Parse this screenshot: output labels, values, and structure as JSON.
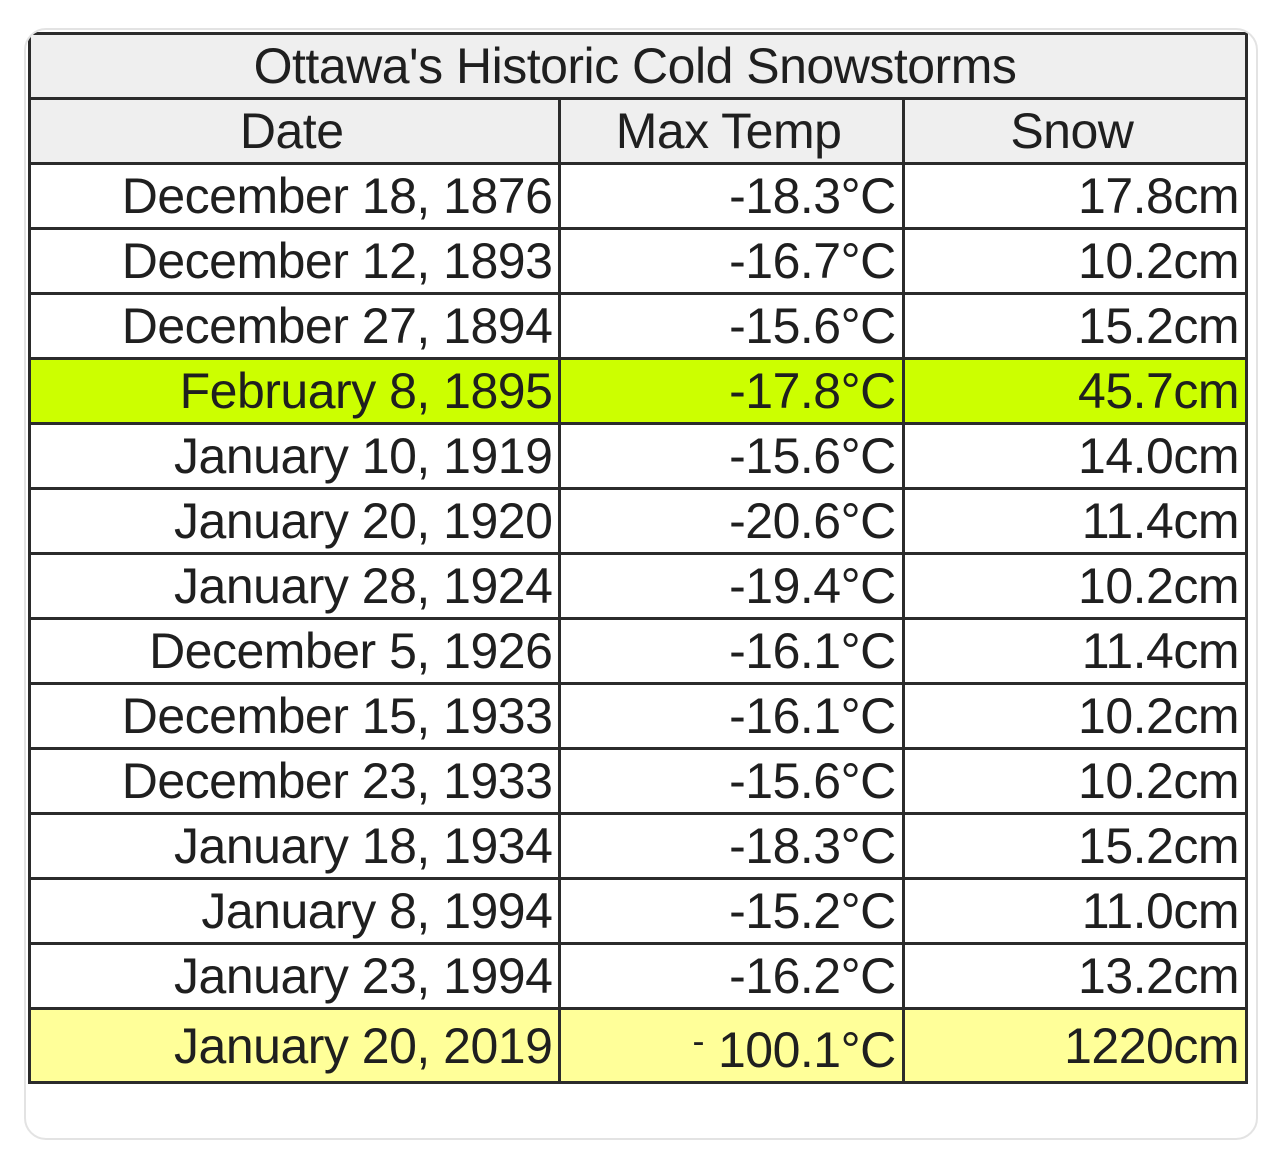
{
  "table": {
    "title": "Ottawa's Historic Cold Snowstorms",
    "headers": [
      "Date",
      "Max Temp",
      "Snow"
    ],
    "rows": [
      {
        "date": "December 18, 1876",
        "temp": "-18.3°C",
        "snow": "17.8cm"
      },
      {
        "date": "December 12, 1893",
        "temp": "-16.7°C",
        "snow": "10.2cm"
      },
      {
        "date": "December 27, 1894",
        "temp": "-15.6°C",
        "snow": "15.2cm"
      },
      {
        "date": "February 8, 1895",
        "temp": "-17.8°C",
        "snow": "45.7cm"
      },
      {
        "date": "January 10, 1919",
        "temp": "-15.6°C",
        "snow": "14.0cm"
      },
      {
        "date": "January 20, 1920",
        "temp": "-20.6°C",
        "snow": "11.4cm"
      },
      {
        "date": "January 28, 1924",
        "temp": "-19.4°C",
        "snow": "10.2cm"
      },
      {
        "date": "December 5, 1926",
        "temp": "-16.1°C",
        "snow": "11.4cm"
      },
      {
        "date": "December 15, 1933",
        "temp": "-16.1°C",
        "snow": "10.2cm"
      },
      {
        "date": "December 23, 1933",
        "temp": "-15.6°C",
        "snow": "10.2cm"
      },
      {
        "date": "January 18, 1934",
        "temp": "-18.3°C",
        "snow": "15.2cm"
      },
      {
        "date": "January 8, 1994",
        "temp": "-15.2°C",
        "snow": "11.0cm"
      },
      {
        "date": "January 23, 1994",
        "temp": "-16.2°C",
        "snow": "13.2cm"
      },
      {
        "date": "January 20, 2019",
        "temp_dash": "-",
        "temp": "100.1°C",
        "snow": "1220cm"
      }
    ]
  },
  "colors": {
    "highlight_green": "#ccff00",
    "highlight_yellow": "#ffff99",
    "header_bg": "#efefef",
    "grid": "#2b2b2b"
  }
}
